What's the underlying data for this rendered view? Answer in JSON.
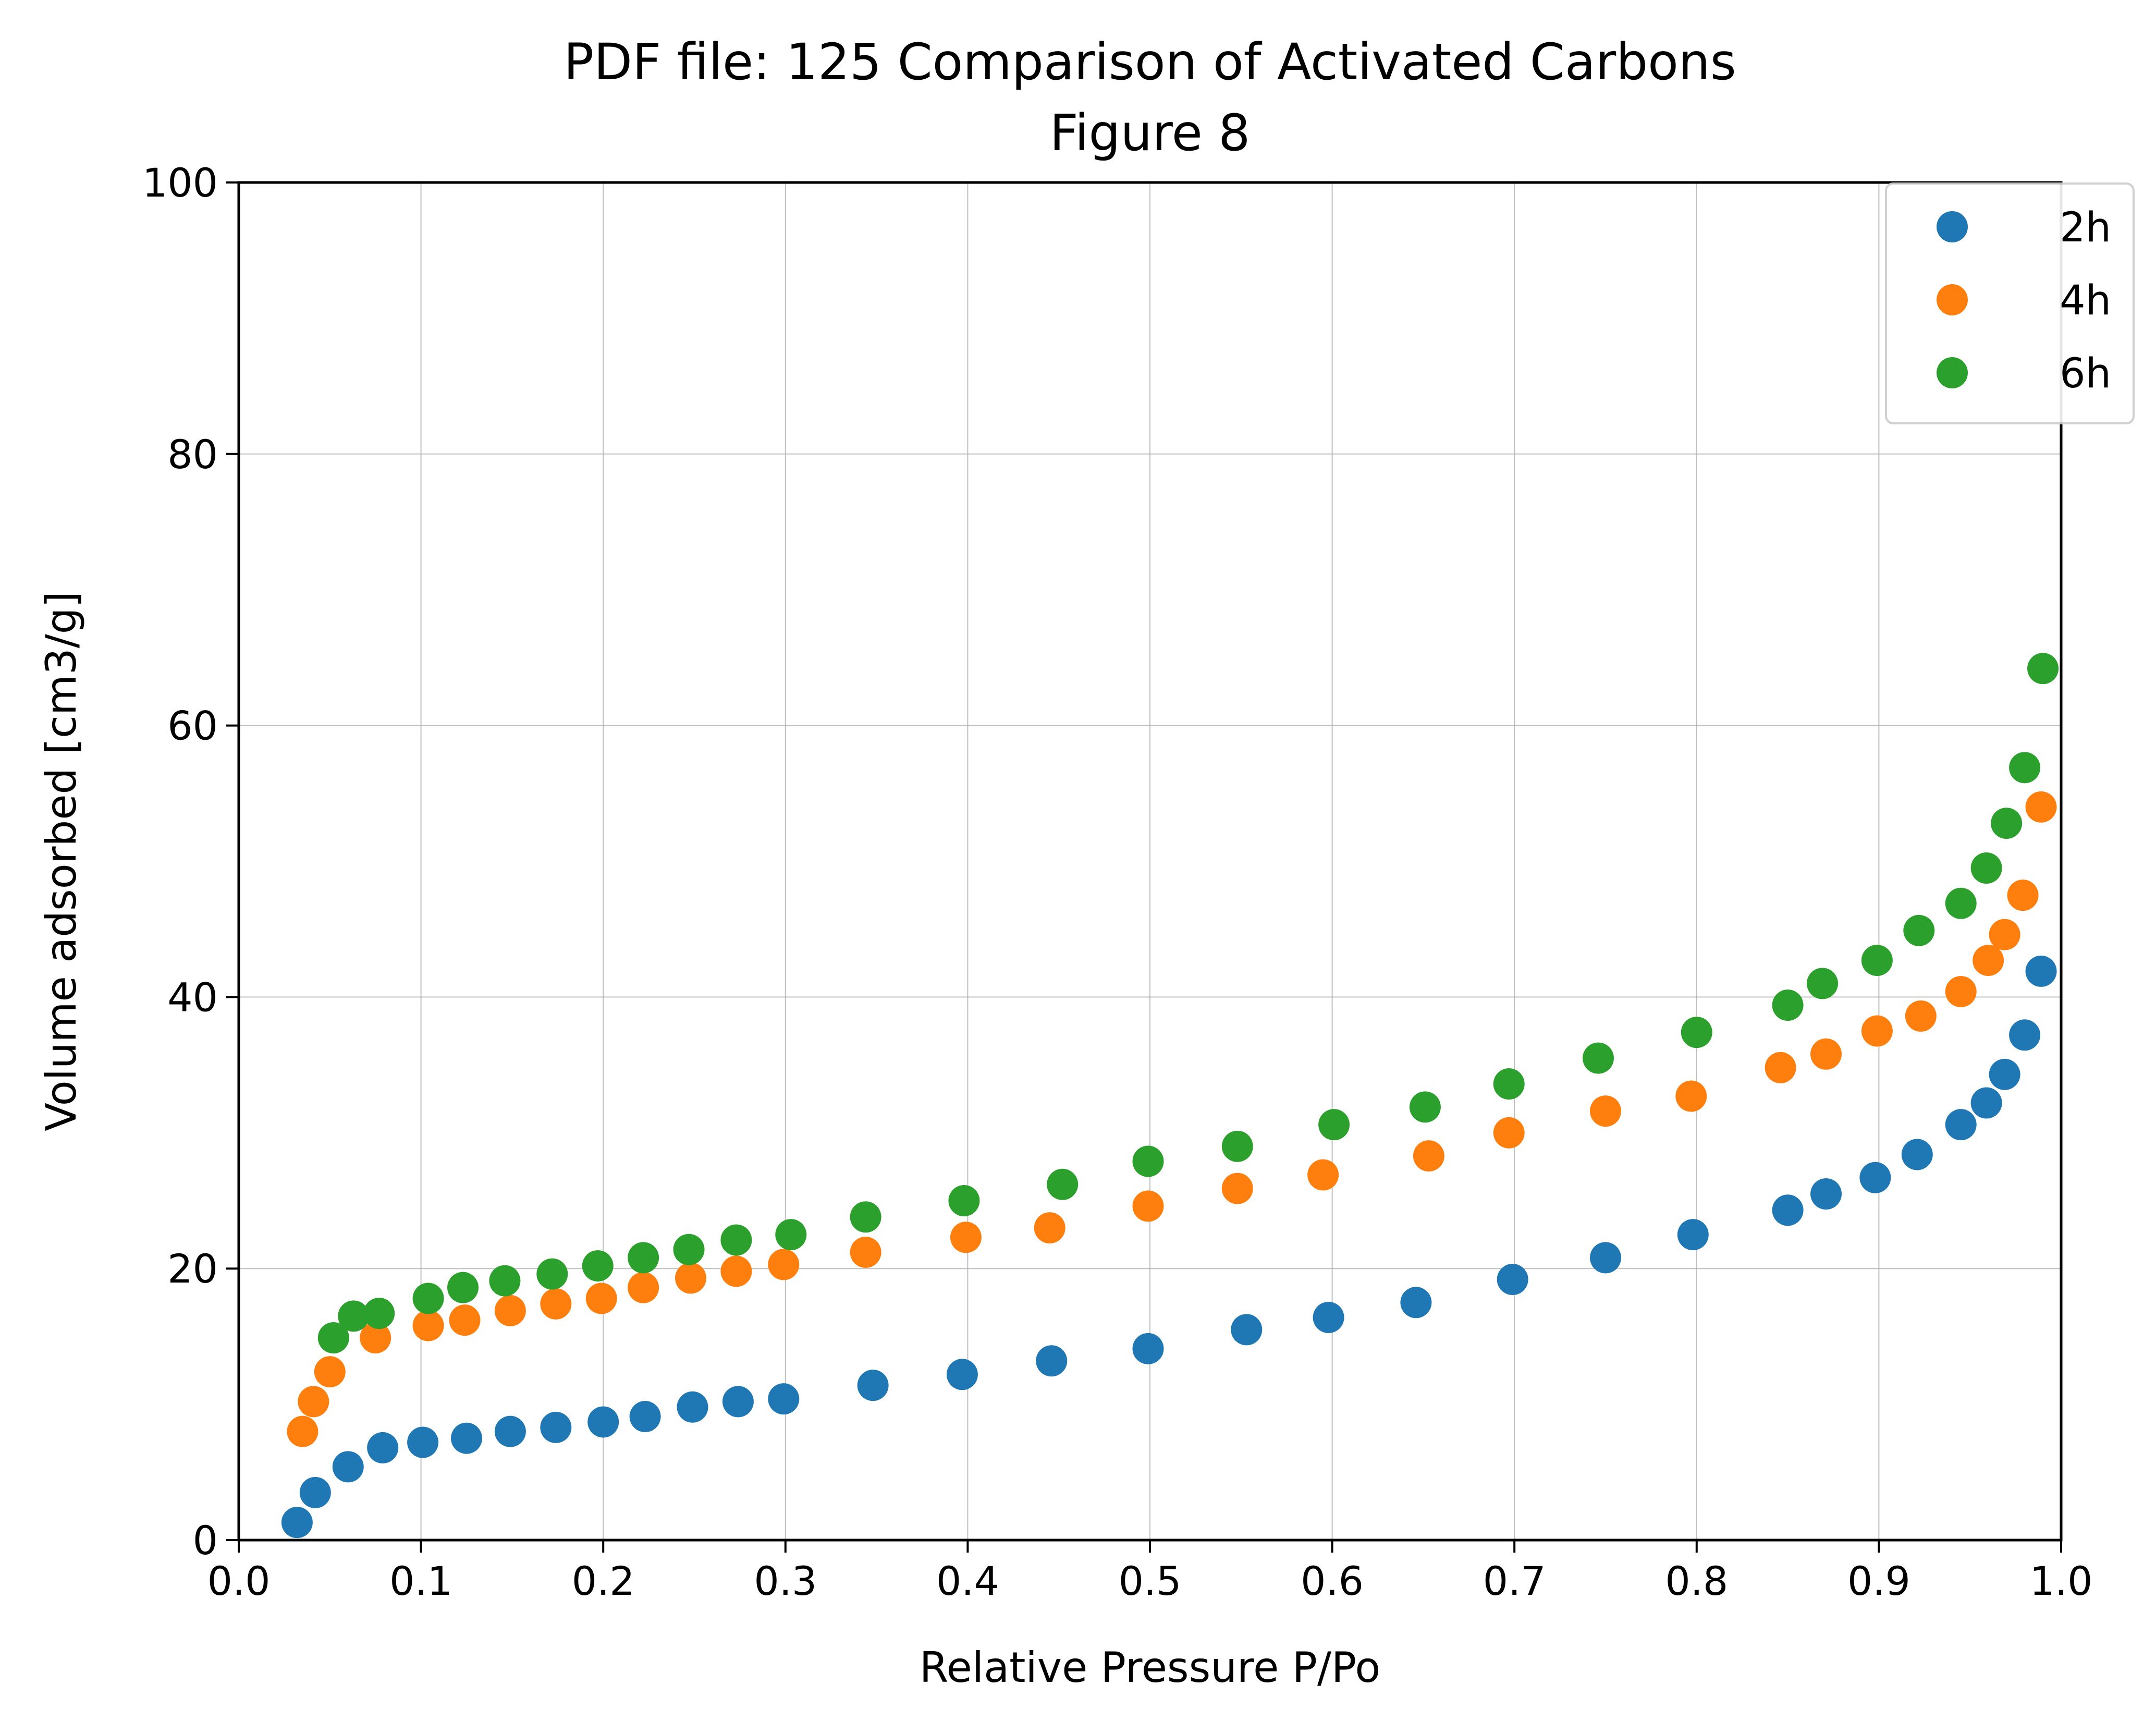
{
  "chart_data": {
    "type": "scatter",
    "title": "PDF file: 125 Comparison of Activated Carbons",
    "subtitle": "Figure 8",
    "xlabel": "Relative Pressure P/Po",
    "ylabel": "Volume adsorbed [cm3/g]",
    "xlim": [
      0.0,
      1.0
    ],
    "ylim": [
      0,
      100
    ],
    "xticks": [
      "0.0",
      "0.1",
      "0.2",
      "0.3",
      "0.4",
      "0.5",
      "0.6",
      "0.7",
      "0.8",
      "0.9",
      "1.0"
    ],
    "yticks": [
      "0",
      "20",
      "40",
      "60",
      "80",
      "100"
    ],
    "grid": true,
    "legend_position": "top-right",
    "series": [
      {
        "name": "2h",
        "color": "#1f77b4",
        "x": [
          0.032,
          0.042,
          0.06,
          0.079,
          0.101,
          0.125,
          0.149,
          0.174,
          0.2,
          0.223,
          0.249,
          0.274,
          0.299,
          0.348,
          0.397,
          0.446,
          0.499,
          0.553,
          0.598,
          0.646,
          0.699,
          0.75,
          0.798,
          0.85,
          0.871,
          0.898,
          0.921,
          0.945,
          0.959,
          0.969,
          0.98,
          0.989
        ],
        "y": [
          1.3,
          3.5,
          5.4,
          6.8,
          7.2,
          7.5,
          8.0,
          8.3,
          8.7,
          9.1,
          9.8,
          10.2,
          10.4,
          11.4,
          12.2,
          13.2,
          14.1,
          15.5,
          16.4,
          17.5,
          19.2,
          20.8,
          22.5,
          24.3,
          25.5,
          26.7,
          28.4,
          30.6,
          32.2,
          34.3,
          37.2,
          41.9
        ]
      },
      {
        "name": "4h",
        "color": "#ff7f0e",
        "x": [
          0.035,
          0.041,
          0.05,
          0.075,
          0.104,
          0.124,
          0.149,
          0.174,
          0.199,
          0.222,
          0.248,
          0.273,
          0.299,
          0.344,
          0.399,
          0.445,
          0.499,
          0.548,
          0.595,
          0.653,
          0.697,
          0.75,
          0.797,
          0.846,
          0.871,
          0.899,
          0.923,
          0.945,
          0.96,
          0.969,
          0.979,
          0.989
        ],
        "y": [
          8.0,
          10.2,
          12.4,
          14.9,
          15.8,
          16.2,
          16.9,
          17.4,
          17.8,
          18.6,
          19.3,
          19.8,
          20.3,
          21.2,
          22.3,
          23.0,
          24.6,
          25.9,
          26.9,
          28.3,
          30.0,
          31.6,
          32.7,
          34.8,
          35.8,
          37.5,
          38.6,
          40.4,
          42.7,
          44.6,
          47.5,
          54.0
        ]
      },
      {
        "name": "6h",
        "color": "#2ca02c",
        "x": [
          0.052,
          0.063,
          0.077,
          0.104,
          0.123,
          0.146,
          0.172,
          0.197,
          0.222,
          0.247,
          0.273,
          0.303,
          0.344,
          0.398,
          0.452,
          0.499,
          0.548,
          0.601,
          0.651,
          0.697,
          0.746,
          0.8,
          0.85,
          0.869,
          0.899,
          0.922,
          0.945,
          0.959,
          0.97,
          0.98,
          0.99
        ],
        "y": [
          14.9,
          16.5,
          16.7,
          17.8,
          18.6,
          19.1,
          19.6,
          20.2,
          20.8,
          21.4,
          22.1,
          22.5,
          23.8,
          25.0,
          26.2,
          27.9,
          29.0,
          30.6,
          31.9,
          33.6,
          35.5,
          37.4,
          39.4,
          41.0,
          42.7,
          44.9,
          46.9,
          49.5,
          52.8,
          56.9,
          64.2
        ]
      }
    ]
  }
}
